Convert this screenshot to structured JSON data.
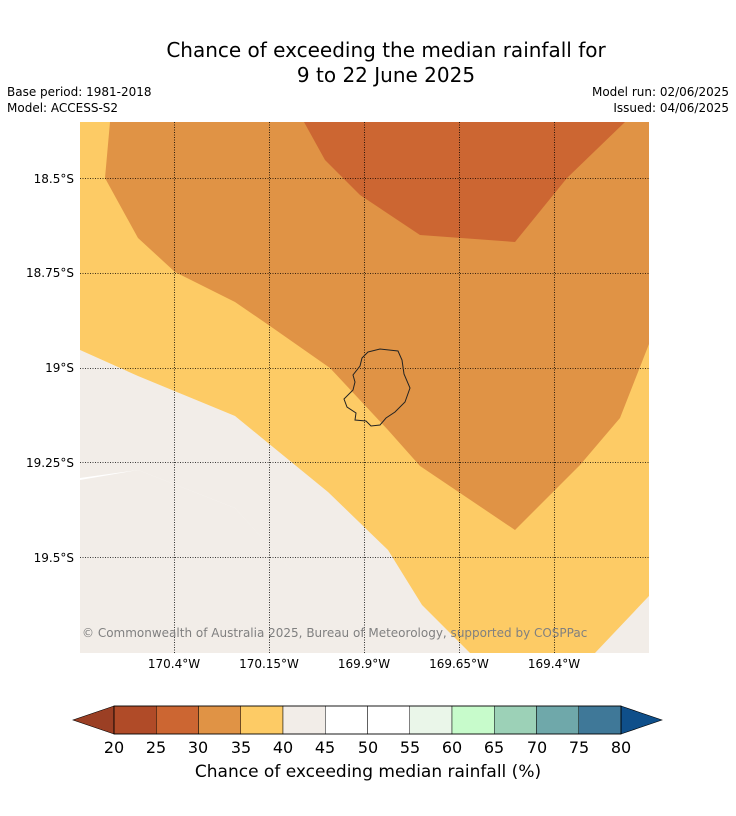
{
  "title_line1": "Chance of exceeding the median rainfall for",
  "title_line2": "9 to 22 June 2025",
  "base_period": "Base period: 1981-2018",
  "model": "Model: ACCESS-S2",
  "model_run": "Model run: 02/06/2025",
  "issued": "Issued: 04/06/2025",
  "copyright": "© Commonwealth of Australia 2025, Bureau of Meteorology, supported by COSPPac",
  "map": {
    "x_ticks": [
      "170.4°W",
      "170.15°W",
      "169.9°W",
      "169.65°W",
      "169.4°W"
    ],
    "y_ticks": [
      "18.5°S",
      "18.75°S",
      "19°S",
      "19.25°S",
      "19.5°S"
    ],
    "colors": {
      "c25_30": "#cc6632",
      "c30_35": "#e09345",
      "c35_40": "#fdcb65",
      "c40_45": "#f2ede8",
      "c45_55": "#ffffff",
      "c55_60": "#eaf6e9"
    }
  },
  "colorbar": {
    "title": "Chance of exceeding median rainfall (%)",
    "labels": [
      "20",
      "25",
      "30",
      "35",
      "40",
      "45",
      "50",
      "55",
      "60",
      "65",
      "70",
      "75",
      "80"
    ],
    "colors": [
      "#b04b28",
      "#cc6632",
      "#e09345",
      "#fdcb65",
      "#f2ede8",
      "#ffffff",
      "#ffffff",
      "#eaf6e9",
      "#c7fbcb",
      "#9cd1b7",
      "#6fa8aa",
      "#3f7898"
    ],
    "under_color": "#9b3f24",
    "over_color": "#0f4f8a"
  }
}
